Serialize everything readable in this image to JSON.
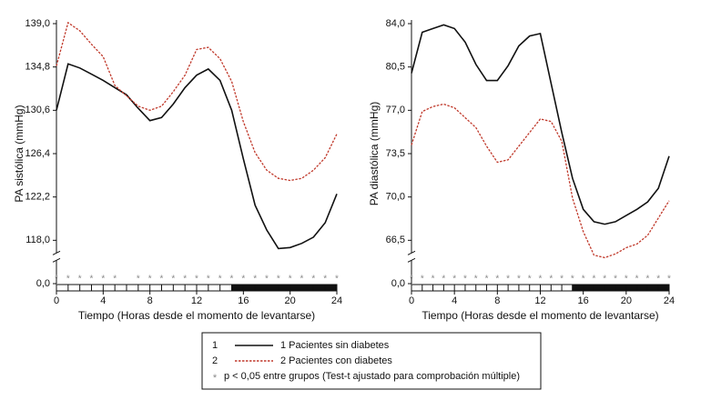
{
  "chart_data": [
    {
      "type": "line",
      "y_label": "PA sistólica (mmHg)",
      "x_label": "Tiempo (Horas desde el momento de levantarse)",
      "x": [
        0,
        1,
        2,
        3,
        4,
        5,
        6,
        7,
        8,
        9,
        10,
        11,
        12,
        13,
        14,
        15,
        16,
        17,
        18,
        19,
        20,
        21,
        22,
        23,
        24
      ],
      "xlim": [
        0,
        24
      ],
      "xticks": [
        0,
        4,
        8,
        12,
        16,
        20,
        24
      ],
      "ylim": [
        0,
        139.0
      ],
      "yticks": [
        {
          "value": 0,
          "label": "0,0"
        },
        {
          "value": 118.0,
          "label": "118,0"
        },
        {
          "value": 122.2,
          "label": "122,2"
        },
        {
          "value": 126.4,
          "label": "126,4"
        },
        {
          "value": 130.6,
          "label": "130,6"
        },
        {
          "value": 134.8,
          "label": "134,8"
        },
        {
          "value": 139.0,
          "label": "139,0"
        }
      ],
      "significant_x": [
        0,
        1,
        2,
        3,
        4,
        5,
        7,
        8,
        9,
        10,
        11,
        12,
        13,
        14,
        15,
        16,
        17,
        18,
        19,
        20,
        21,
        22,
        23,
        24
      ],
      "dark_period": [
        15,
        24
      ],
      "series": [
        {
          "key": "1",
          "name": "1 Pacientes sin diabetes",
          "color": "#111111",
          "dash": false,
          "values": [
            130.6,
            135.1,
            134.7,
            134.1,
            133.5,
            132.8,
            132.1,
            130.8,
            129.6,
            129.9,
            131.2,
            132.8,
            134.0,
            134.6,
            133.5,
            130.6,
            125.9,
            121.4,
            119.0,
            117.2,
            117.3,
            117.7,
            118.3,
            119.7,
            122.5
          ]
        },
        {
          "key": "2",
          "name": "2 Pacientes con diabetes",
          "color": "#c0392b",
          "dash": true,
          "values": [
            134.9,
            139.1,
            138.3,
            137.0,
            135.8,
            133.0,
            132.0,
            131.0,
            130.6,
            131.0,
            132.4,
            134.0,
            136.5,
            136.7,
            135.6,
            133.4,
            129.5,
            126.5,
            124.8,
            124.0,
            123.8,
            124.0,
            124.8,
            126.0,
            128.3
          ]
        }
      ]
    },
    {
      "type": "line",
      "y_label": "PA diastólica (mmHg)",
      "x_label": "Tiempo (Horas desde el momento de levantarse)",
      "x": [
        0,
        1,
        2,
        3,
        4,
        5,
        6,
        7,
        8,
        9,
        10,
        11,
        12,
        13,
        14,
        15,
        16,
        17,
        18,
        19,
        20,
        21,
        22,
        23,
        24
      ],
      "xlim": [
        0,
        24
      ],
      "xticks": [
        0,
        4,
        8,
        12,
        16,
        20,
        24
      ],
      "ylim": [
        0,
        84.0
      ],
      "yticks": [
        {
          "value": 0,
          "label": "0,0"
        },
        {
          "value": 66.5,
          "label": "66,5"
        },
        {
          "value": 70.0,
          "label": "70,0"
        },
        {
          "value": 73.5,
          "label": "73,5"
        },
        {
          "value": 77.0,
          "label": "77,0"
        },
        {
          "value": 80.5,
          "label": "80,5"
        },
        {
          "value": 84.0,
          "label": "84,0"
        }
      ],
      "significant_x": [
        0,
        1,
        2,
        3,
        4,
        5,
        6,
        7,
        8,
        9,
        10,
        11,
        12,
        13,
        14,
        15,
        16,
        17,
        18,
        19,
        20,
        21,
        22,
        23,
        24
      ],
      "dark_period": [
        15,
        24
      ],
      "series": [
        {
          "key": "1",
          "color": "#111111",
          "dash": false,
          "values": [
            80.0,
            83.3,
            83.6,
            83.9,
            83.6,
            82.5,
            80.7,
            79.4,
            79.4,
            80.6,
            82.2,
            83.0,
            83.2,
            79.2,
            75.2,
            71.5,
            69.0,
            68.0,
            67.8,
            68.0,
            68.5,
            69.0,
            69.6,
            70.7,
            73.3
          ]
        },
        {
          "key": "2",
          "color": "#c0392b",
          "dash": true,
          "values": [
            74.2,
            76.9,
            77.3,
            77.5,
            77.2,
            76.4,
            75.6,
            74.1,
            72.8,
            73.0,
            74.1,
            75.2,
            76.3,
            76.1,
            74.5,
            69.9,
            67.2,
            65.3,
            65.1,
            65.4,
            65.9,
            66.2,
            66.9,
            68.3,
            69.7
          ]
        }
      ]
    }
  ],
  "legend": {
    "note_marker": "*",
    "note": "p < 0,05 entre grupos (Test-t ajustado para comprobación múltiple)"
  }
}
